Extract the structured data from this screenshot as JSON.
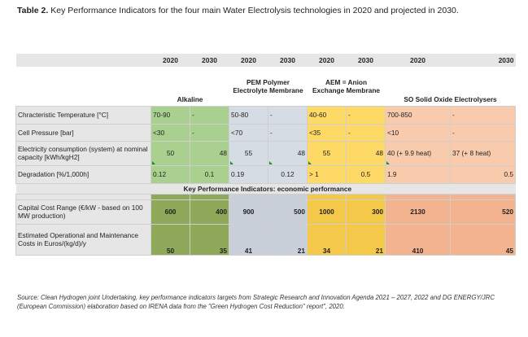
{
  "caption": {
    "label": "Table 2.",
    "text": "Key Performance Indicators for the four main Water Electrolysis technologies in 2020 and projected in 2030."
  },
  "years": [
    "2020",
    "2030"
  ],
  "technologies": {
    "alkaline": "Alkaline",
    "pem": "PEM Polymer Electrolyte Membrane",
    "aem": "AEM = Anion Exchange Membrane",
    "so": "SO Solid Oxide Electrolysers"
  },
  "rows": {
    "temperature": {
      "label": "Chracteristic Temperature [°C]",
      "alk": [
        "70-90",
        "-"
      ],
      "pem": [
        "50-80",
        "-"
      ],
      "aem": [
        "40-60",
        "-"
      ],
      "so": [
        "700-850",
        "-"
      ]
    },
    "pressure": {
      "label": "Cell Pressure [bar]",
      "alk": [
        "<30",
        "-"
      ],
      "pem": [
        "<70",
        "-"
      ],
      "aem": [
        "<35",
        "-"
      ],
      "so": [
        "<10",
        "-"
      ]
    },
    "electricity": {
      "label": "Electricity consumption (system) at nominal capacity [kWh/kgH2]",
      "alk": [
        "50",
        "48"
      ],
      "pem": [
        "55",
        "48"
      ],
      "aem": [
        "55",
        "48"
      ],
      "so": [
        "40 (+ 9.9 heat)",
        "37 (+ 8 heat)"
      ]
    },
    "degradation": {
      "label": "Degradation [%/1,000h]",
      "alk": [
        "0.12",
        "0.1"
      ],
      "pem": [
        "0.19",
        "0.12"
      ],
      "aem": [
        "> 1",
        "0.5"
      ],
      "so": [
        "1.9",
        "0.5"
      ]
    },
    "economic_header": "Key Performance Indicators: economic performance",
    "capex": {
      "label": "Capital Cost Range (€/kW - based on 100 MW production)",
      "alk": [
        "600",
        "400"
      ],
      "pem": [
        "900",
        "500"
      ],
      "aem": [
        "1000",
        "300"
      ],
      "so": [
        "2130",
        "520"
      ]
    },
    "opex": {
      "label": "Estimated Operational and Maintenance Costs in Euros/(kg/d)/y",
      "alk": [
        "50",
        "35"
      ],
      "pem": [
        "41",
        "21"
      ],
      "aem": [
        "34",
        "21"
      ],
      "so": [
        "410",
        "45"
      ]
    }
  },
  "source": "Source: Clean Hydrogen joint Undertaking, key performance indicators targets from Strategic Research and Innovation Agenda 2021 – 2027, 2022 and DG ENERGY/JRC (European Commission) elaboration based on IRENA data from the \"Green Hydrogen Cost Reduction\" report\", 2020."
}
